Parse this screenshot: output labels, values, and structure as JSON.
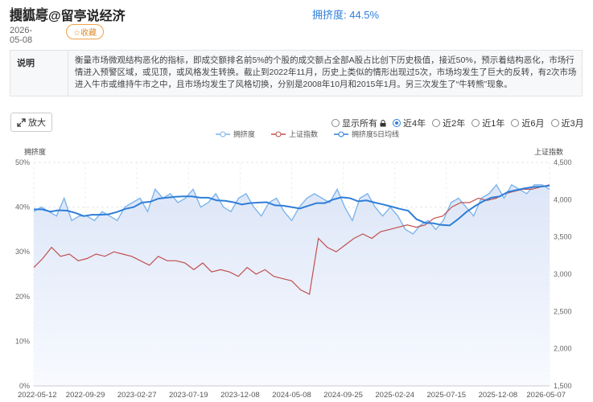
{
  "header": {
    "title": "拥挤度",
    "watermark": "搜狐号@留亭说经济",
    "crowding_label": "拥挤度: 44.5%",
    "date": "2026-05-08",
    "favorite_label": "☆收藏"
  },
  "description": {
    "label": "说明",
    "text": "衡量市场微观结构恶化的指标，即成交额排名前5%的个股的成交额占全部A股占比创下历史极值，接近50%，预示着结构恶化，市场行情进入预警区域，或见顶，或风格发生转换。截止到2022年11月，历史上类似的情形出现过5次，市场均发生了巨大的反转，有2次市场进入牛市或维持牛市之中，且市场均发生了风格切换，分别是2008年10月和2015年1月。另三次发生了“牛转熊”现象。"
  },
  "toolbar": {
    "zoom_label": "放大",
    "ranges": [
      {
        "label": "显示所有",
        "selected": false,
        "locked": true
      },
      {
        "label": "近4年",
        "selected": true
      },
      {
        "label": "近2年",
        "selected": false
      },
      {
        "label": "近1年",
        "selected": false
      },
      {
        "label": "近6月",
        "selected": false
      },
      {
        "label": "近3月",
        "selected": false
      }
    ]
  },
  "chart_data": {
    "type": "line",
    "left_axis_label": "拥挤度",
    "right_axis_label": "上证指数",
    "left_ylim": [
      0,
      50
    ],
    "left_ticks": [
      "0%",
      "10%",
      "20%",
      "30%",
      "40%",
      "50%"
    ],
    "right_ylim": [
      1500,
      4500
    ],
    "right_ticks": [
      "1,500",
      "2,000",
      "2,500",
      "3,000",
      "3,500",
      "4,000",
      "4,500"
    ],
    "x_ticks": [
      "2022-05-12",
      "2022-09-29",
      "2023-02-27",
      "2023-07-19",
      "2023-12-08",
      "2024-05-08",
      "2024-09-25",
      "2025-02-24",
      "2025-07-15",
      "2025-12-08",
      "2026-05-07"
    ],
    "grid": true,
    "legend_position": "top",
    "colors": {
      "crowding": "#7cb5ec",
      "index": "#c0504d",
      "ma5": "#2f7ed8"
    },
    "series": [
      {
        "name": "拥挤度",
        "axis": "left",
        "values": [
          39,
          40,
          39,
          38,
          42,
          37,
          38,
          38,
          37,
          39,
          38,
          37,
          40,
          41,
          42,
          39,
          44,
          42,
          43,
          41,
          42,
          44,
          40,
          41,
          43,
          40,
          39,
          42,
          43,
          40,
          38,
          41,
          42,
          39,
          37,
          40,
          42,
          43,
          42,
          41,
          44,
          40,
          37,
          42,
          43,
          40,
          38,
          40,
          38,
          35,
          34,
          36,
          37,
          35,
          37,
          41,
          42,
          40,
          38,
          42,
          43,
          45,
          42,
          45,
          44,
          43,
          45,
          45,
          44
        ]
      },
      {
        "name": "上证指数",
        "axis": "left",
        "values": [
          26.5,
          28.5,
          31,
          29,
          29.5,
          28,
          28.5,
          29.5,
          29,
          30,
          29.5,
          29,
          28,
          27,
          29,
          28,
          28,
          27.5,
          26,
          27.5,
          25.5,
          26,
          25.5,
          24.5,
          26.5,
          25,
          26,
          24.5,
          24,
          23.5,
          21.5,
          20.5,
          33,
          31,
          30,
          31.5,
          33,
          34,
          33,
          34.5,
          35,
          35.5,
          36,
          35.5,
          36,
          37.5,
          38,
          40,
          41,
          41,
          42,
          41.5,
          42,
          43,
          43.5,
          44,
          44,
          44.5,
          45
        ]
      },
      {
        "name": "拥挤度5日均线",
        "axis": "left",
        "values": [
          39.5,
          39.5,
          39,
          39.3,
          39.2,
          38.7,
          38,
          38.3,
          38.3,
          38.4,
          38.9,
          39.6,
          40,
          41,
          41.2,
          41.9,
          42.1,
          42.3,
          42.4,
          42.4,
          42.1,
          42.1,
          41.5,
          41.4,
          41.1,
          40.6,
          40.9,
          41,
          41.1,
          40.4,
          40.3,
          40,
          39.7,
          40.3,
          40.9,
          40.9,
          41.7,
          42.2,
          42,
          41.3,
          41.5,
          41,
          40.6,
          40.1,
          39.6,
          39.2,
          37.3,
          36.5,
          36.4,
          36,
          35.9,
          37.3,
          38.9,
          40.2,
          41.3,
          42.1,
          42.4,
          43.4,
          43.8,
          44.2,
          44.5,
          44.6,
          44.8
        ]
      }
    ]
  }
}
